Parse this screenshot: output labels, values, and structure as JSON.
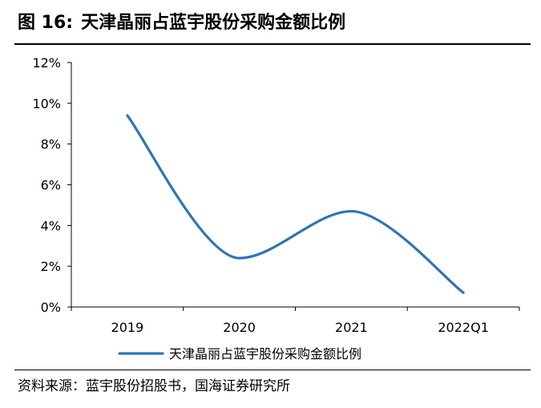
{
  "figure": {
    "label": "图 16:",
    "title": "天津晶丽占蓝宇股份采购金额比例"
  },
  "source": "资料来源：蓝宇股份招股书，国海证券研究所",
  "colors": {
    "series": "#2e75b6",
    "axis": "#000000",
    "tick_text": "#000000"
  },
  "chart_data": {
    "type": "line",
    "title": "天津晶丽占蓝宇股份采购金额比例",
    "categories": [
      "2019",
      "2020",
      "2021",
      "2022Q1"
    ],
    "series": [
      {
        "name": "天津晶丽占蓝宇股份采购金额比例",
        "values": [
          9.4,
          2.4,
          4.7,
          0.7
        ],
        "color": "#2e75b6",
        "smooth": true
      }
    ],
    "ylim": [
      0,
      12
    ],
    "yticks": [
      "0%",
      "2%",
      "4%",
      "6%",
      "8%",
      "10%",
      "12%"
    ],
    "ytick_values": [
      0,
      2,
      4,
      6,
      8,
      10,
      12
    ],
    "y_unit": "%",
    "grid": false,
    "legend": "bottom-center"
  }
}
